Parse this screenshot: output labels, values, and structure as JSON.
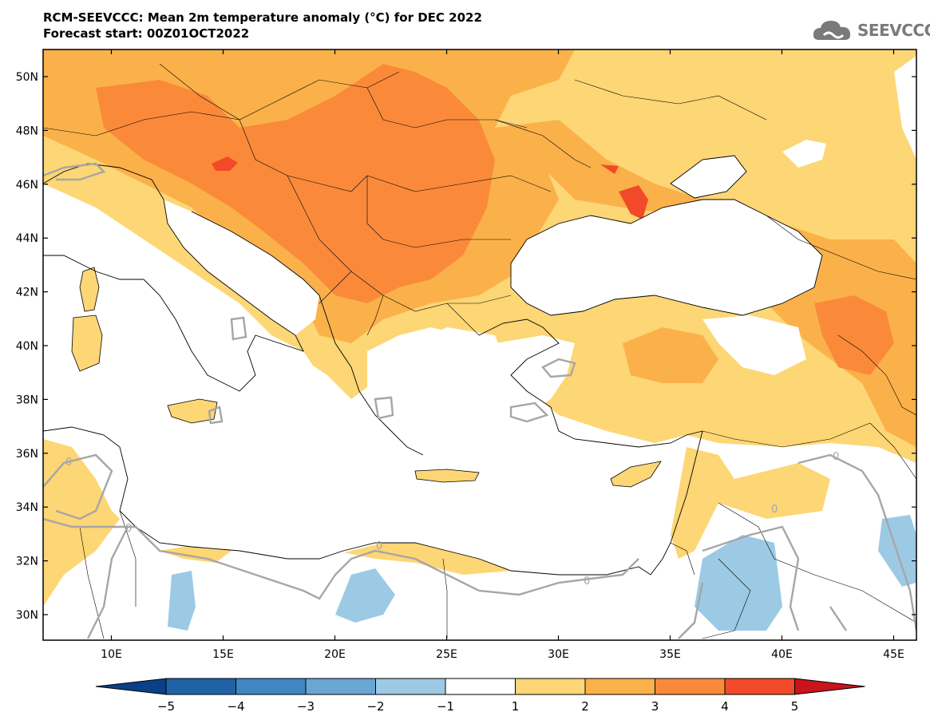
{
  "title": {
    "line1": "RCM-SEEVCCC: Mean 2m temperature anomaly (°C) for DEC 2022",
    "line2": "Forecast start: 00Z01OCT2022"
  },
  "logo": {
    "text": "SEEVCCC",
    "icon": "cloud-icon"
  },
  "axes": {
    "lat_labels": [
      "50N",
      "48N",
      "46N",
      "44N",
      "42N",
      "40N",
      "38N",
      "36N",
      "34N",
      "32N",
      "30N"
    ],
    "lon_labels": [
      "10E",
      "15E",
      "20E",
      "25E",
      "30E",
      "35E",
      "40E",
      "45E"
    ]
  },
  "contour_labels": [
    "0",
    "0",
    "0",
    "0",
    "0",
    "0"
  ],
  "colorbar": {
    "ticks": [
      "-5",
      "-4",
      "-3",
      "-2",
      "-1",
      "1",
      "2",
      "3",
      "4",
      "5"
    ],
    "colors": [
      "#0b3f86",
      "#1f63a6",
      "#3f86c3",
      "#6aa6d4",
      "#9ccae4",
      "#ffffff",
      "#fdd675",
      "#fbb14a",
      "#fa8a3a",
      "#f24a28",
      "#c8141a"
    ]
  }
}
